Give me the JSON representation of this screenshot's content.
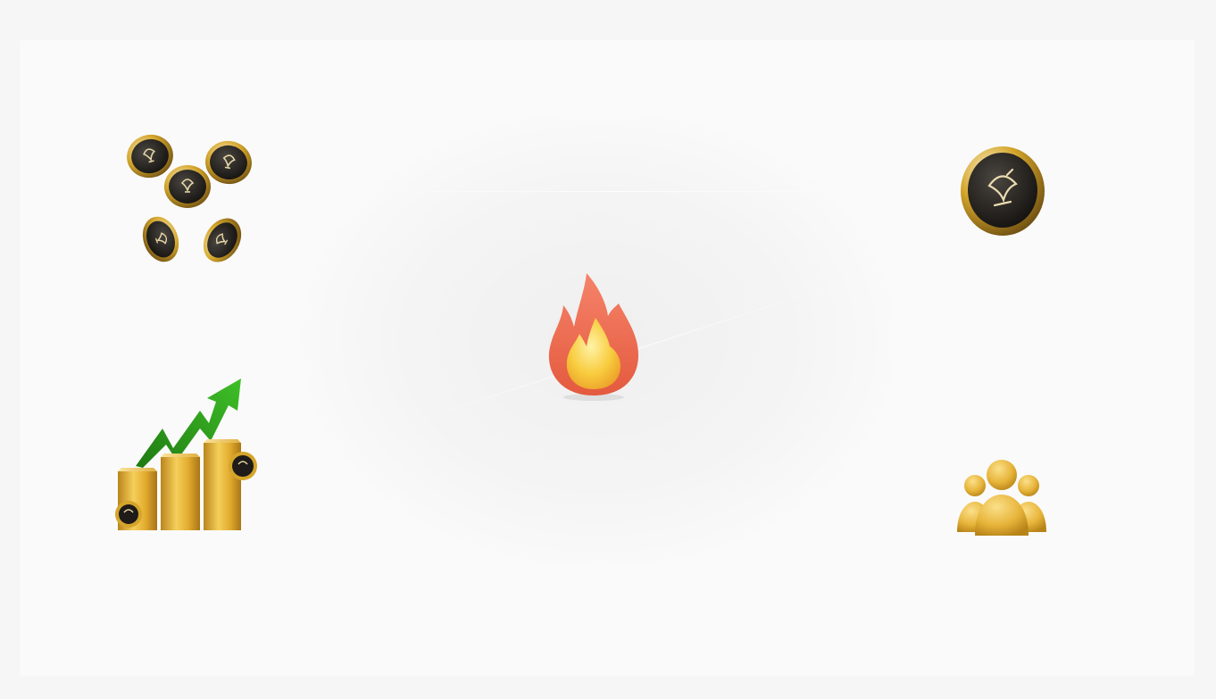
{
  "features": [
    {
      "id": "coins",
      "icon": "coins-cluster-icon"
    },
    {
      "id": "single-coin",
      "icon": "coin-icon"
    },
    {
      "id": "fire",
      "icon": "fire-icon"
    },
    {
      "id": "growth",
      "icon": "gold-bars-growth-icon"
    },
    {
      "id": "community",
      "icon": "people-group-icon"
    }
  ],
  "colors": {
    "background": "#f6f6f6",
    "panel": "#fafafa",
    "gold": "#d4a52a",
    "coin_dark": "#1e1b18",
    "arrow_green": "#2f9a1e",
    "flame_red": "#ef6a4e",
    "flame_yellow": "#f7c43a"
  }
}
